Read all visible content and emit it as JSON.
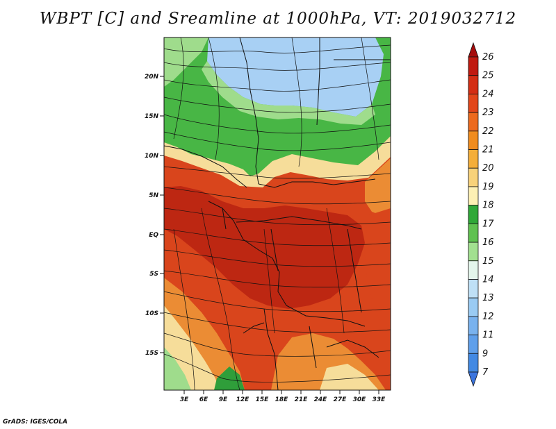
{
  "title": "WBPT [C] and Sreamline at 1000hPa, VT: 2019032712",
  "footer": "GrADS: IGES/COLA",
  "lat_ticks": [
    "20N",
    "15N",
    "10N",
    "5N",
    "EQ",
    "5S",
    "10S",
    "15S"
  ],
  "lon_ticks": [
    "3E",
    "6E",
    "9E",
    "12E",
    "15E",
    "18E",
    "21E",
    "24E",
    "27E",
    "30E",
    "33E"
  ],
  "colorbar": {
    "labels": [
      "26",
      "25",
      "24",
      "23",
      "22",
      "21",
      "20",
      "19",
      "18",
      "17",
      "16",
      "15",
      "14",
      "13",
      "12",
      "11",
      "9",
      "7"
    ],
    "colors": [
      "#a50c0c",
      "#c01a10",
      "#d42e14",
      "#e2461a",
      "#ec6a1e",
      "#f08c1e",
      "#f4ae3a",
      "#f8d27a",
      "#fdf0b4",
      "#2fa838",
      "#5fc150",
      "#a2e090",
      "#e4f6ec",
      "#bfe0f6",
      "#9acbf3",
      "#79b2ee",
      "#5f9fea",
      "#4289e3",
      "#3a74de"
    ]
  },
  "field_colors": {
    "blue": "#a8d0f4",
    "light_green": "#9fdc8c",
    "green": "#48b645",
    "pale_yellow": "#f6dd9a",
    "orange": "#eb8c34",
    "red_orange": "#d9451c",
    "dark_red": "#bd2712",
    "sea_green": "#2f9e3a"
  }
}
